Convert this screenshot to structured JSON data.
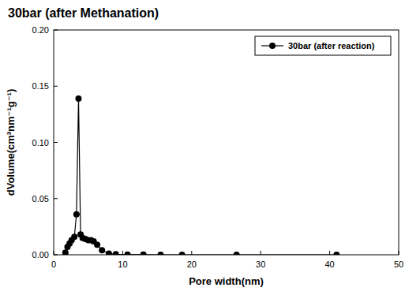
{
  "chart_data": {
    "type": "line",
    "title": "30bar (after Methanation)",
    "x_label": "Pore width(nm)",
    "y_label": "dVolume(cm³nm⁻¹g⁻¹)",
    "xlim": [
      0,
      50
    ],
    "xticks": [
      0,
      10,
      20,
      30,
      40,
      50
    ],
    "ylim": [
      0,
      0.2
    ],
    "yticks": [
      {
        "value": 0,
        "label": "0.00"
      },
      {
        "value": 0.05,
        "label": "0.05"
      },
      {
        "value": 0.1,
        "label": "0.10"
      },
      {
        "value": 0.15,
        "label": "0.15"
      },
      {
        "value": 0.2,
        "label": "0.20"
      }
    ],
    "grid": false,
    "legend": "top-right",
    "x": [
      1.7,
      2.0,
      2.3,
      2.6,
      3.0,
      3.3,
      3.6,
      3.9,
      4.2,
      4.6,
      5.0,
      5.4,
      5.8,
      6.3,
      7.0,
      8.0,
      9.0,
      10.7,
      13.0,
      15.5,
      18.6,
      26.5,
      41.0
    ],
    "series": [
      {
        "name": "30bar (after reaction)",
        "color": "#000000",
        "marker": "circle",
        "line_style": "solid",
        "values": [
          0.002,
          0.007,
          0.01,
          0.013,
          0.016,
          0.036,
          0.139,
          0.018,
          0.015,
          0.014,
          0.013,
          0.013,
          0.012,
          0.009,
          0.004,
          0.001,
          0.0005,
          0.0002,
          0.0001,
          0,
          0,
          0,
          0
        ]
      }
    ]
  }
}
